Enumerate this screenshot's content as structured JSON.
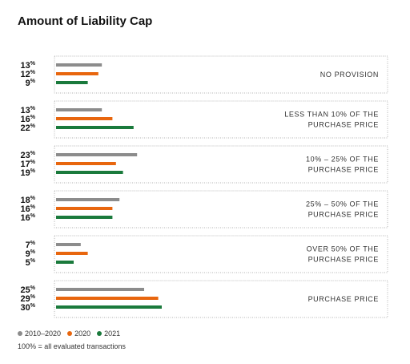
{
  "chart_data": {
    "type": "bar",
    "orientation": "horizontal",
    "title": "Amount of Liability Cap",
    "categories": [
      "NO PROVISION",
      "LESS THAN 10% OF THE PURCHASE PRICE",
      "10% – 25% OF THE PURCHASE PRICE",
      "25% – 50% OF THE PURCHASE PRICE",
      "OVER 50% OF THE PURCHASE PRICE",
      "PURCHASE PRICE"
    ],
    "category_lines": [
      [
        "NO PROVISION"
      ],
      [
        "LESS THAN 10% OF THE",
        "PURCHASE PRICE"
      ],
      [
        "10% – 25% OF THE",
        "PURCHASE PRICE"
      ],
      [
        "25% – 50% OF THE",
        "PURCHASE PRICE"
      ],
      [
        "OVER 50% OF THE",
        "PURCHASE PRICE"
      ],
      [
        "PURCHASE PRICE"
      ]
    ],
    "series": [
      {
        "name": "2010–2020",
        "color": "#8c8c8c",
        "values": [
          13,
          13,
          23,
          18,
          7,
          25
        ]
      },
      {
        "name": "2020",
        "color": "#e8660e",
        "values": [
          12,
          16,
          17,
          16,
          9,
          29
        ]
      },
      {
        "name": "2021",
        "color": "#1a7a3c",
        "values": [
          9,
          22,
          19,
          16,
          5,
          30
        ]
      }
    ],
    "value_suffix": "%",
    "xlim": [
      0,
      100
    ],
    "legend_position": "bottom-left",
    "footnote": "100% = all evaluated transactions"
  }
}
